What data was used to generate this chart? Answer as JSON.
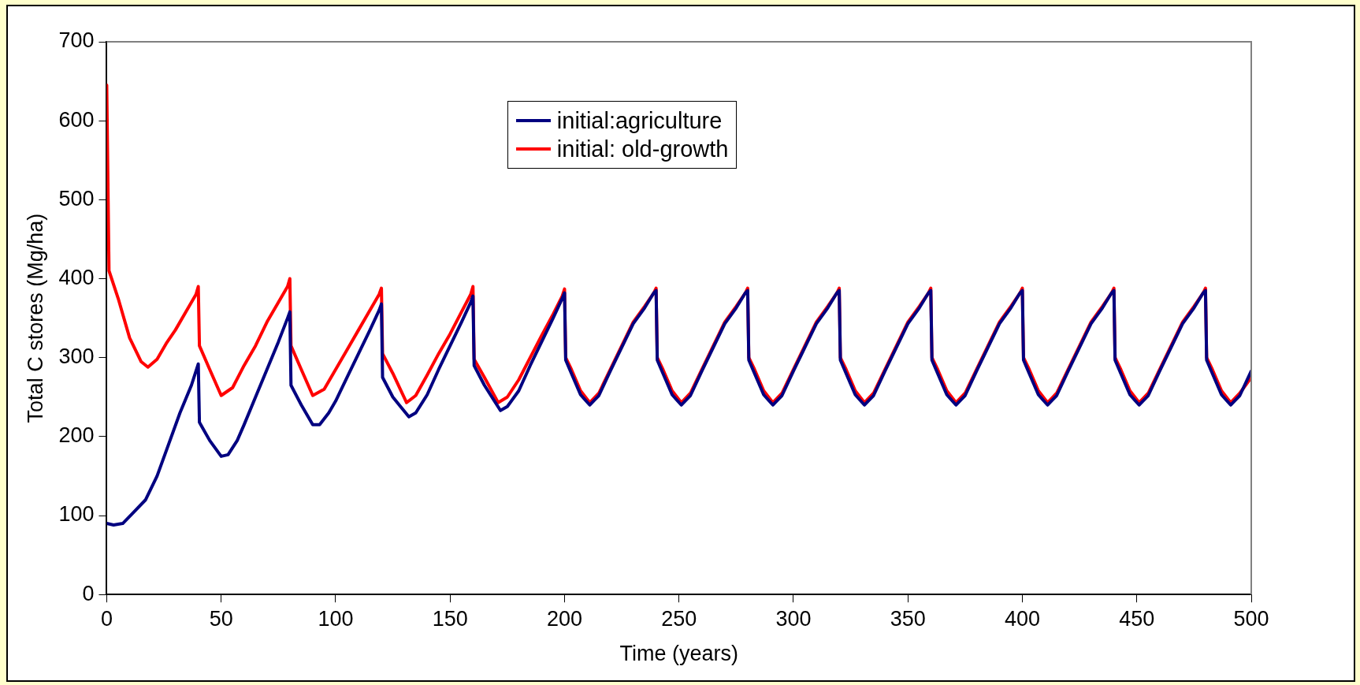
{
  "chart_data": {
    "type": "line",
    "xlabel": "Time (years)",
    "ylabel": "Total C stores (Mg/ha)",
    "xlim": [
      0,
      500
    ],
    "xticks": [
      0,
      50,
      100,
      150,
      200,
      250,
      300,
      350,
      400,
      450,
      500
    ],
    "ylim": [
      0,
      700
    ],
    "yticks": [
      0,
      100,
      200,
      300,
      400,
      500,
      600,
      700
    ],
    "grid": false,
    "legend": "top",
    "marker": "none",
    "line_style": "solid",
    "series": [
      {
        "name": "initial:agriculture",
        "color": "#000080",
        "x": [
          0,
          3,
          7,
          12,
          17,
          22,
          27,
          32,
          37,
          40,
          40.5,
          45,
          50,
          53,
          57,
          60,
          65,
          70,
          75,
          79,
          80,
          80.5,
          85,
          90,
          93,
          97,
          100,
          105,
          110,
          115,
          119,
          120,
          120.5,
          125,
          132,
          135,
          140,
          145,
          150,
          155,
          159,
          160,
          160.5,
          165,
          172,
          175,
          180,
          185,
          190,
          195,
          199,
          200,
          200.5,
          203,
          207,
          211,
          215,
          220,
          225,
          230,
          235,
          239,
          240,
          240.5,
          243,
          247,
          251,
          255,
          260,
          265,
          270,
          275,
          279,
          280,
          280.5,
          283,
          287,
          291,
          295,
          300,
          305,
          310,
          315,
          319,
          320,
          320.5,
          323,
          327,
          331,
          335,
          340,
          345,
          350,
          355,
          359,
          360,
          360.5,
          363,
          367,
          371,
          375,
          380,
          385,
          390,
          395,
          399,
          400,
          400.5,
          403,
          407,
          411,
          415,
          420,
          425,
          430,
          435,
          439,
          440,
          440.5,
          443,
          447,
          451,
          455,
          460,
          465,
          470,
          475,
          479,
          480,
          480.5,
          483,
          487,
          491,
          495,
          500
        ],
        "values": [
          90,
          88,
          90,
          105,
          120,
          150,
          190,
          230,
          265,
          292,
          218,
          195,
          175,
          177,
          195,
          215,
          250,
          285,
          320,
          350,
          358,
          265,
          240,
          215,
          215,
          230,
          245,
          275,
          305,
          335,
          360,
          368,
          275,
          250,
          225,
          230,
          253,
          285,
          315,
          345,
          370,
          378,
          290,
          265,
          233,
          238,
          258,
          290,
          320,
          350,
          375,
          382,
          297,
          280,
          253,
          240,
          252,
          283,
          313,
          343,
          363,
          382,
          385,
          297,
          280,
          253,
          240,
          252,
          283,
          313,
          343,
          363,
          382,
          385,
          297,
          280,
          253,
          240,
          252,
          283,
          313,
          343,
          363,
          382,
          385,
          297,
          280,
          253,
          240,
          252,
          283,
          313,
          343,
          363,
          382,
          385,
          297,
          280,
          253,
          240,
          252,
          283,
          313,
          343,
          363,
          382,
          385,
          297,
          280,
          253,
          240,
          252,
          283,
          313,
          343,
          363,
          382,
          385,
          297,
          280,
          253,
          240,
          252,
          283,
          313,
          343,
          363,
          382,
          385,
          297,
          280,
          253,
          240,
          252,
          283
        ]
      },
      {
        "name": "initial: old-growth",
        "color": "#ff0000",
        "x": [
          0,
          1,
          5,
          10,
          15,
          18,
          22,
          26,
          30,
          35,
          39,
          40,
          40.5,
          45,
          50,
          55,
          60,
          65,
          70,
          75,
          79,
          80,
          80.5,
          85,
          90,
          95,
          100,
          105,
          110,
          115,
          119,
          120,
          120.5,
          125,
          131,
          135,
          140,
          145,
          150,
          155,
          159,
          160,
          160.5,
          165,
          171,
          175,
          180,
          185,
          190,
          195,
          199,
          200,
          200.5,
          203,
          207,
          211,
          215,
          220,
          225,
          230,
          235,
          239,
          240,
          240.5,
          243,
          247,
          251,
          255,
          260,
          265,
          270,
          275,
          279,
          280,
          280.5,
          283,
          287,
          291,
          295,
          300,
          305,
          310,
          315,
          319,
          320,
          320.5,
          323,
          327,
          331,
          335,
          340,
          345,
          350,
          355,
          359,
          360,
          360.5,
          363,
          367,
          371,
          375,
          380,
          385,
          390,
          395,
          399,
          400,
          400.5,
          403,
          407,
          411,
          415,
          420,
          425,
          430,
          435,
          439,
          440,
          440.5,
          443,
          447,
          451,
          455,
          460,
          465,
          470,
          475,
          479,
          480,
          480.5,
          483,
          487,
          491,
          495,
          500
        ],
        "values": [
          645,
          410,
          375,
          325,
          295,
          288,
          298,
          318,
          335,
          360,
          380,
          390,
          315,
          285,
          252,
          262,
          290,
          315,
          345,
          370,
          390,
          400,
          315,
          285,
          252,
          260,
          285,
          310,
          335,
          360,
          380,
          388,
          305,
          280,
          243,
          252,
          278,
          305,
          330,
          358,
          380,
          390,
          298,
          275,
          243,
          250,
          272,
          300,
          328,
          355,
          378,
          387,
          300,
          285,
          258,
          243,
          255,
          285,
          315,
          345,
          365,
          382,
          388,
          300,
          285,
          258,
          243,
          255,
          285,
          315,
          345,
          365,
          382,
          388,
          300,
          285,
          258,
          243,
          255,
          285,
          315,
          345,
          365,
          382,
          388,
          300,
          285,
          258,
          243,
          255,
          285,
          315,
          345,
          365,
          382,
          388,
          300,
          285,
          258,
          243,
          255,
          285,
          315,
          345,
          365,
          382,
          388,
          300,
          285,
          258,
          243,
          255,
          285,
          315,
          345,
          365,
          382,
          388,
          300,
          285,
          258,
          243,
          255,
          285,
          315,
          345,
          365,
          382,
          388,
          300,
          285,
          258,
          243,
          255,
          275
        ]
      }
    ]
  }
}
